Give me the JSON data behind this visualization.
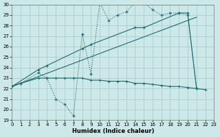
{
  "xlabel": "Humidex (Indice chaleur)",
  "bg_color": "#cce8e8",
  "grid_color": "#aacccc",
  "line_color": "#1a6b6b",
  "xlim": [
    0,
    23
  ],
  "ylim": [
    19,
    30
  ],
  "yticks": [
    19,
    20,
    21,
    22,
    23,
    24,
    25,
    26,
    27,
    28,
    29,
    30
  ],
  "xticks": [
    0,
    1,
    2,
    3,
    4,
    5,
    6,
    7,
    8,
    9,
    10,
    11,
    12,
    13,
    14,
    15,
    16,
    17,
    18,
    19,
    20,
    21,
    22,
    23
  ],
  "curve1_x": [
    0,
    1,
    3,
    4,
    5,
    6,
    7,
    8,
    9,
    10,
    11,
    12,
    13,
    14,
    15,
    16,
    17,
    18,
    19,
    20,
    21
  ],
  "curve1_y": [
    22.2,
    22.5,
    23.5,
    23.0,
    21.0,
    20.5,
    19.4,
    27.2,
    23.4,
    30.2,
    28.5,
    29.0,
    29.3,
    30.2,
    30.2,
    29.5,
    29.0,
    29.2,
    29.2,
    29.0,
    22.0
  ],
  "curve2_x": [
    0,
    3,
    4,
    8,
    9,
    14,
    15,
    19,
    20,
    21
  ],
  "curve2_y": [
    22.2,
    23.8,
    24.2,
    25.8,
    26.2,
    27.8,
    27.8,
    29.2,
    29.2,
    22.0
  ],
  "curve3_x": [
    0,
    21
  ],
  "curve3_y": [
    22.2,
    28.8
  ],
  "curve4_x": [
    0,
    1,
    3,
    4,
    5,
    6,
    7,
    8,
    9,
    10,
    11,
    12,
    13,
    14,
    15,
    16,
    17,
    18,
    19,
    20,
    21,
    22
  ],
  "curve4_y": [
    22.2,
    22.5,
    23.0,
    23.0,
    23.0,
    23.0,
    23.0,
    23.0,
    22.8,
    22.8,
    22.7,
    22.7,
    22.7,
    22.5,
    22.5,
    22.4,
    22.3,
    22.2,
    22.2,
    22.1,
    22.0,
    21.9
  ]
}
